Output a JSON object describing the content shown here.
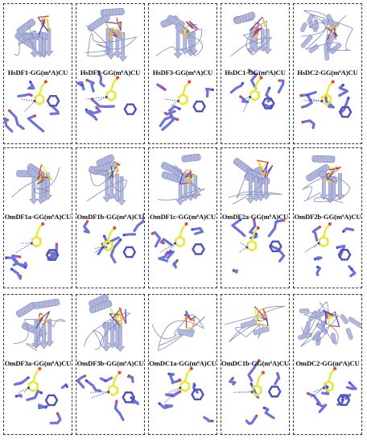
{
  "figure": {
    "rows": [
      {
        "panels": [
          {
            "label": "HsDF1-GG(m⁶A)CU",
            "style": "alpha-beta"
          },
          {
            "label": "HsDF2-GG(m⁶A)CU",
            "style": "alpha-beta"
          },
          {
            "label": "HsDF3-GG(m⁶A)CU",
            "style": "alpha-beta"
          },
          {
            "label": "HsDC1-GG(m⁶A)CU",
            "style": "open-beta"
          },
          {
            "label": "HsDC2-GG(m⁶A)CU",
            "style": "dense"
          }
        ]
      },
      {
        "panels": [
          {
            "label": "OmDF1a-GG(m⁶A)CU",
            "style": "alpha-beta"
          },
          {
            "label": "OmDF1b-GG(m⁶A)CU",
            "style": "alpha-beta"
          },
          {
            "label": "OmDF1c-GG(m⁶A)CU",
            "style": "alpha-beta"
          },
          {
            "label": "OmDF2a-GG(m⁶A)CU",
            "style": "alpha-beta"
          },
          {
            "label": "OmDF2b-GG(m⁶A)CU",
            "style": "alpha-beta"
          }
        ]
      },
      {
        "panels": [
          {
            "label": "OmDF3a-GG(m⁶A)CU",
            "style": "alpha-beta"
          },
          {
            "label": "OmDF3b-GG(m⁶A)CU",
            "style": "alpha-beta"
          },
          {
            "label": "OmDC1a-GG(m⁶A)CU",
            "style": "sparse"
          },
          {
            "label": "OmDC1b-GG(m⁶A)CU",
            "style": "sparse"
          },
          {
            "label": "OmDC2-GG(m⁶A)CU",
            "style": "dense"
          }
        ]
      }
    ],
    "colors": {
      "protein": "#b3b9dc",
      "protein_dark": "#8a91c2",
      "residue": "#6f72d6",
      "residue_dark": "#4e51b8",
      "ligand": "#e8e83a",
      "oxygen": "#e4413a",
      "nitrogen": "#3a4ee0",
      "phosphate": "#f2a23a",
      "hbond": "#2a3fb0"
    }
  }
}
